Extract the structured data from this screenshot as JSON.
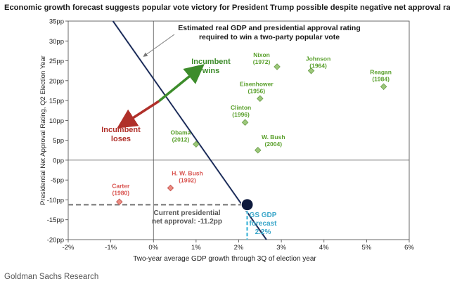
{
  "title": "Economic growth forecast suggests popular vote victory for President Trump possible despite negative net approval rating",
  "source": "Goldman Sachs Research",
  "chart_data": {
    "type": "scatter",
    "xlabel": "Two-year average GDP growth through 3Q of election year",
    "ylabel": "Presidential Net Approval Rating, Q2 Election Year",
    "xlim": [
      -2,
      6
    ],
    "ylim": [
      -20,
      35
    ],
    "xticks": [
      "-2%",
      "-1%",
      "0%",
      "1%",
      "2%",
      "3%",
      "4%",
      "5%",
      "6%"
    ],
    "yticks": [
      "-20pp",
      "-15pp",
      "-10pp",
      "-5pp",
      "0pp",
      "5pp",
      "10pp",
      "15pp",
      "20pp",
      "25pp",
      "30pp",
      "35pp"
    ],
    "colors": {
      "winner": "#5aa02c",
      "winner_fill": "#9cc87a",
      "loser": "#d9534f",
      "loser_fill": "#ec8b80",
      "line": "#1f2f5c",
      "current": "#0e1a3d",
      "forecast": "#5bc0de",
      "arrow_win": "#3d8c2b",
      "arrow_lose": "#b0302a"
    },
    "points": [
      {
        "label": "Nixon",
        "year": "(1972)",
        "x": 2.9,
        "y": 23.5,
        "outcome": "win"
      },
      {
        "label": "Johnson",
        "year": "(1964)",
        "x": 3.7,
        "y": 22.5,
        "outcome": "win"
      },
      {
        "label": "Reagan",
        "year": "(1984)",
        "x": 5.4,
        "y": 18.5,
        "outcome": "win"
      },
      {
        "label": "Eisenhower",
        "year": "(1956)",
        "x": 2.5,
        "y": 15.5,
        "outcome": "win"
      },
      {
        "label": "Clinton",
        "year": "(1996)",
        "x": 2.15,
        "y": 9.5,
        "outcome": "win"
      },
      {
        "label": "W. Bush",
        "year": "(2004)",
        "x": 2.45,
        "y": 2.5,
        "outcome": "win"
      },
      {
        "label": "Obama",
        "year": "(2012)",
        "x": 1.0,
        "y": 4.0,
        "outcome": "win"
      },
      {
        "label": "Carter",
        "year": "(1980)",
        "x": -0.8,
        "y": -10.5,
        "outcome": "lose"
      },
      {
        "label": "H. W. Bush",
        "year": "(1992)",
        "x": 0.4,
        "y": -7.0,
        "outcome": "lose"
      }
    ],
    "threshold_line": {
      "x": [
        -0.95,
        2.65
      ],
      "y": [
        35,
        -20
      ]
    },
    "current": {
      "x": 2.2,
      "y": -11.2
    },
    "annotations": {
      "line_label_1": "Estimated real GDP and presidential approval rating",
      "line_label_2": "required to win a two-party popular vote",
      "wins_1": "Incumbent",
      "wins_2": "wins",
      "loses_1": "Incumbent",
      "loses_2": "loses",
      "approval_1": "Current presidential",
      "approval_2": "net approval: -11.2pp",
      "gdp_1": "GS GDP",
      "gdp_2": "forecast",
      "gdp_3": "2.2%"
    }
  }
}
